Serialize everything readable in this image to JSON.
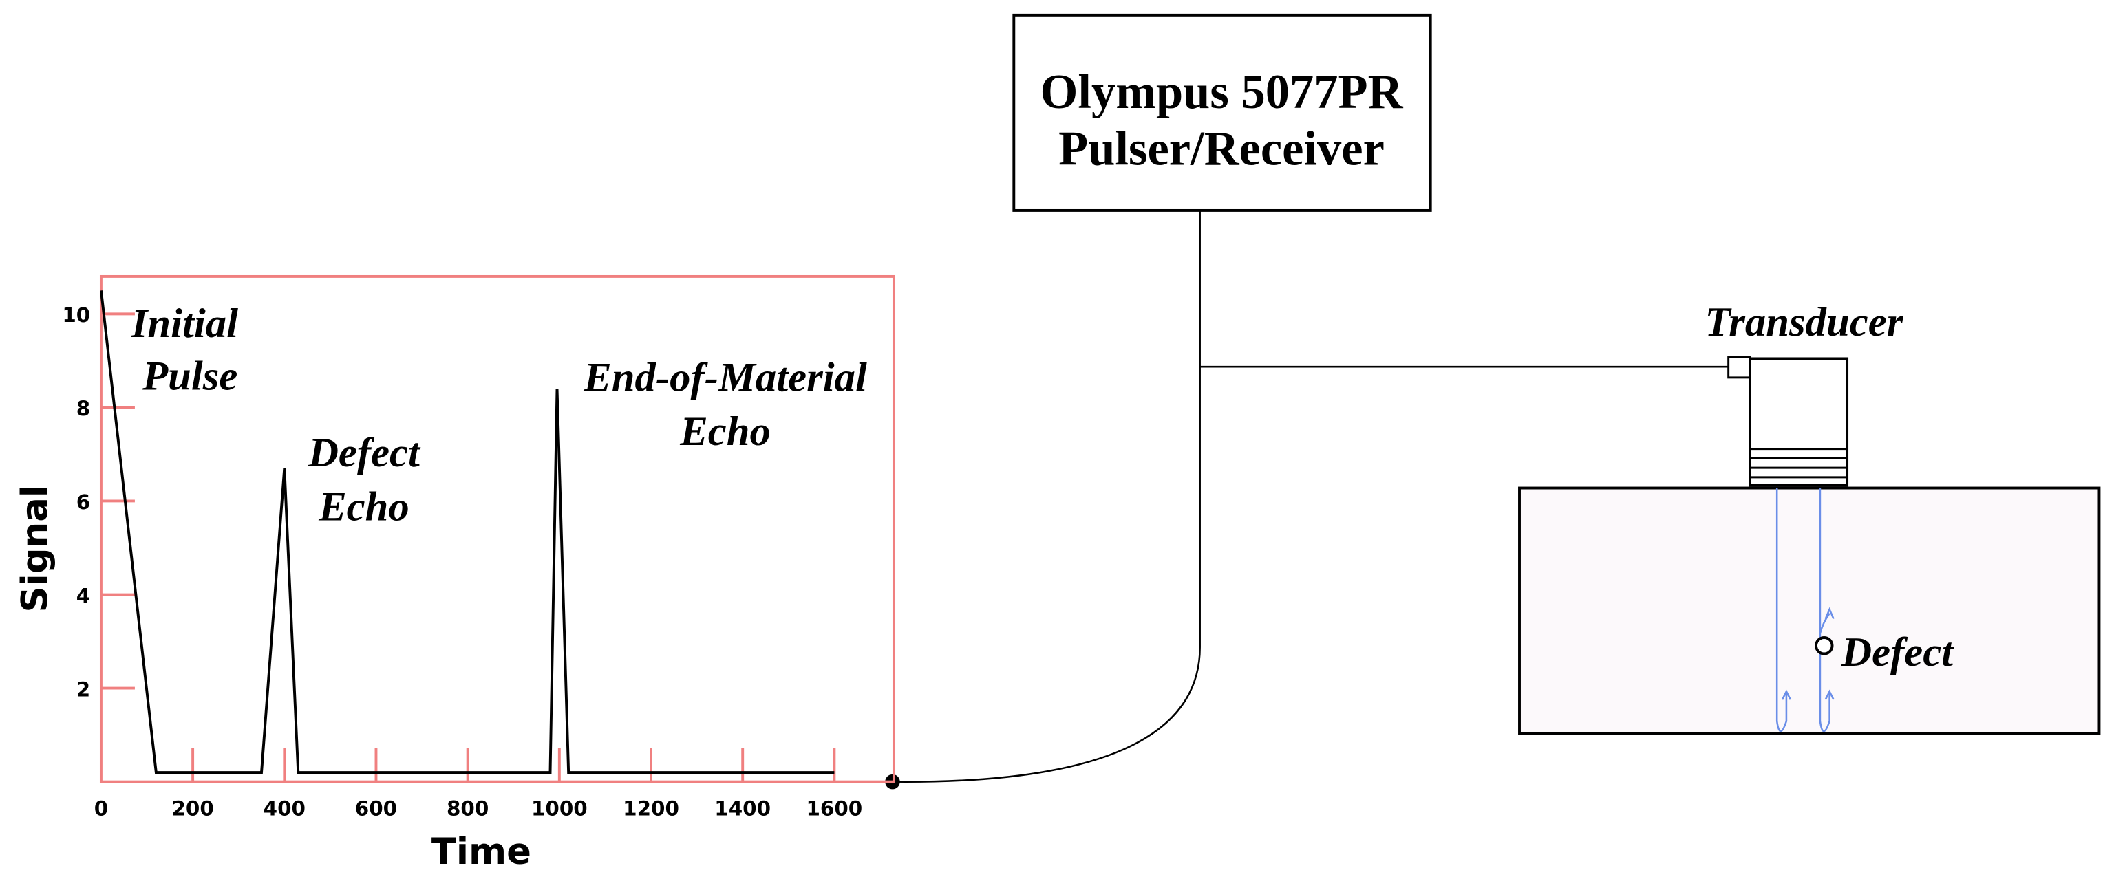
{
  "chart_data": {
    "type": "line",
    "x_label": "Time",
    "y_label": "Signal",
    "annotations": [
      [
        "Initial",
        "Pulse"
      ],
      [
        "Defect",
        "Echo"
      ],
      [
        "End-of-Material",
        "Echo"
      ]
    ],
    "x": [
      0,
      120,
      350,
      400,
      430,
      980,
      995,
      1020,
      1600
    ],
    "values": [
      10.5,
      0.2,
      0.2,
      6.7,
      0.2,
      0.2,
      8.4,
      0.2,
      0.2
    ],
    "color": "#000000",
    "axis_color": "#f08080",
    "xlim": [
      0,
      1730
    ],
    "xticks": [
      0,
      200,
      400,
      600,
      800,
      1000,
      1200,
      1400,
      1600
    ],
    "ylim": [
      0,
      10.8
    ],
    "yticks": [
      2,
      4,
      6,
      8,
      10
    ]
  },
  "device": {
    "lines": [
      "Olympus 5077PR",
      "Pulser/Receiver"
    ]
  },
  "transducer": {
    "label": "Transducer"
  },
  "defect": {
    "label": "Defect"
  }
}
